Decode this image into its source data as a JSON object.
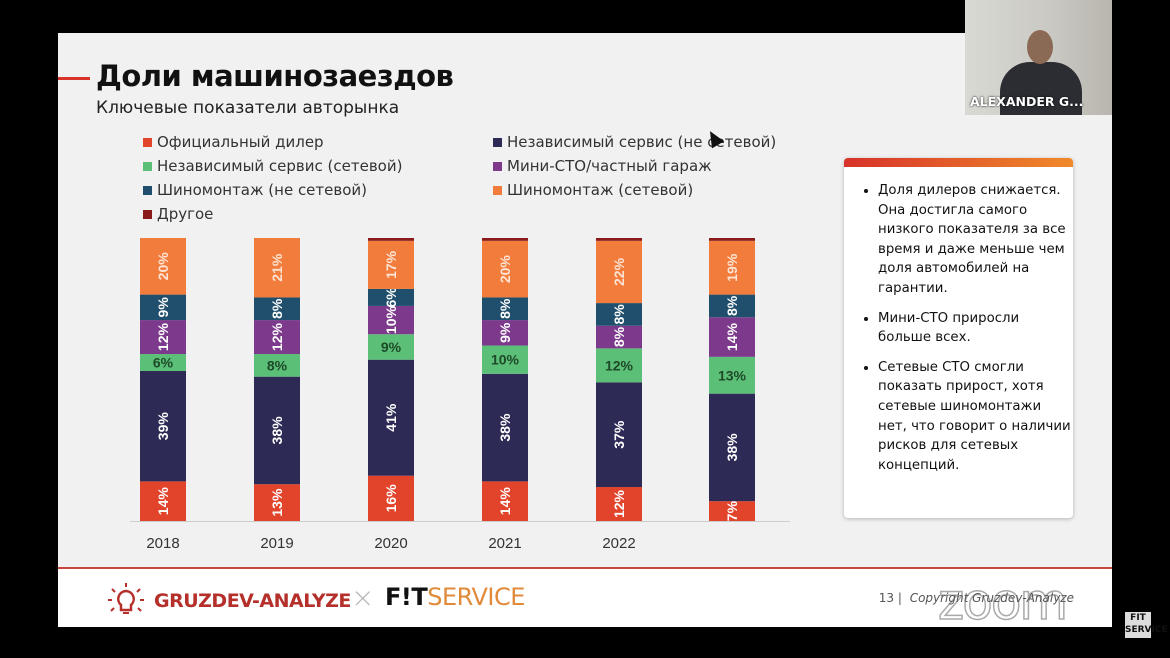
{
  "slide": {
    "title": "Доли машинозаездов",
    "subtitle": "Ключевые показатели авторынка",
    "notes": [
      "Доля дилеров снижается. Она достигла самого низкого показателя за все время и даже меньше чем доля автомобилей на гарантии.",
      "Мини-СТО приросли больше всех.",
      "Сетевые СТО смогли показать прирост, хотя сетевые шиномонтажи нет, что говорит о наличии рисков для сетевых концепций."
    ],
    "footer": {
      "brand1": "GRUZDEV-ANALYZE",
      "separator": "×",
      "brand2_bold": "F!T",
      "brand2_light": "SERVICE",
      "page": "13",
      "copyright": "Copyright Gruzdev-Analyze"
    }
  },
  "video": {
    "participant_name": "ALEXANDER G...",
    "watermark": "zoom",
    "side_logo": "FIT SERVICE"
  },
  "chart_data": {
    "type": "bar",
    "stacked": true,
    "categories": [
      "2018",
      "2019",
      "2020",
      "2021",
      "2022",
      ""
    ],
    "ylim": [
      0,
      100
    ],
    "unit": "%",
    "legend_position": "top",
    "series": [
      {
        "name": "Официальный дилер",
        "color": "#e2432b",
        "values": [
          14,
          13,
          16,
          14,
          12,
          7
        ]
      },
      {
        "name": "Независимый сервис (не сетевой)",
        "color": "#2d2a55",
        "values": [
          39,
          38,
          41,
          38,
          37,
          38
        ]
      },
      {
        "name": "Независимый сервис (сетевой)",
        "color": "#5cbf78",
        "values": [
          6,
          8,
          9,
          10,
          12,
          13
        ]
      },
      {
        "name": "Мини-СТО/частный гараж",
        "color": "#7d3a8d",
        "values": [
          12,
          12,
          10,
          9,
          8,
          14
        ]
      },
      {
        "name": "Шиномонтаж (не сетевой)",
        "color": "#1f4f6c",
        "values": [
          9,
          8,
          6,
          8,
          8,
          8
        ]
      },
      {
        "name": "Шиномонтаж (сетевой)",
        "color": "#f27c3c",
        "values": [
          20,
          21,
          17,
          20,
          22,
          19
        ]
      },
      {
        "name": "Другое",
        "color": "#8b1a1a",
        "values": [
          0,
          0,
          1,
          1,
          1,
          1
        ]
      }
    ],
    "data_labels": [
      [
        "14%",
        "13%",
        "16%",
        "14%",
        "12%",
        "7%"
      ],
      [
        "39%",
        "38%",
        "41%",
        "38%",
        "37%",
        "38%"
      ],
      [
        "6%",
        "8%",
        "9%",
        "10%",
        "12%",
        "13%"
      ],
      [
        "12%",
        "12%",
        "10%",
        "9%",
        "8%",
        "14%"
      ],
      [
        "9%",
        "8%",
        "6%",
        "8%",
        "8%",
        "8%"
      ],
      [
        "20%",
        "21%",
        "17%",
        "20%",
        "22%",
        "19%"
      ],
      [
        "",
        "",
        "",
        "",
        "",
        ""
      ]
    ]
  }
}
